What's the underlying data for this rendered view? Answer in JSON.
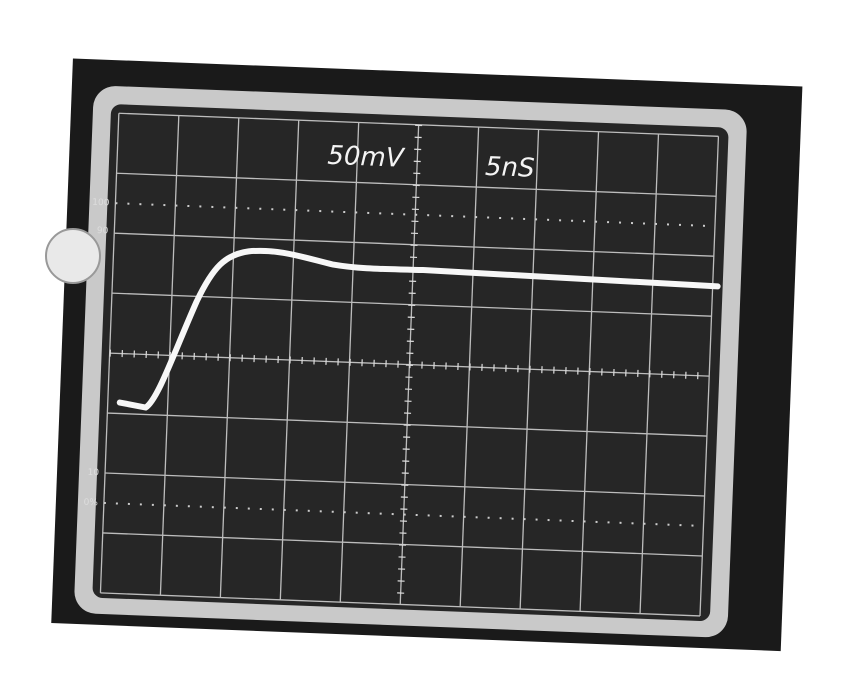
{
  "screen": {
    "volts_per_div": "50mV",
    "time_per_div": "5nS"
  },
  "graticule_labels": {
    "top": "100",
    "upper": "90",
    "lower": "10",
    "bottom": "0%"
  }
}
